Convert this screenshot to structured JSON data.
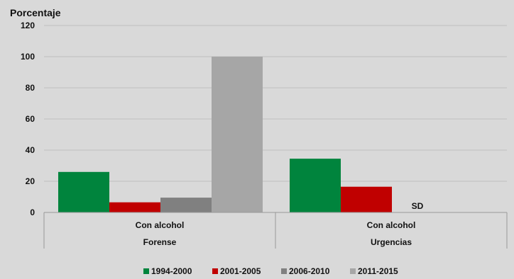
{
  "chart_data": {
    "type": "bar",
    "ylabel": "Porcentaje",
    "ylim": [
      0,
      120
    ],
    "yticks": [
      "0",
      "20",
      "40",
      "60",
      "80",
      "100",
      "120"
    ],
    "grid": true,
    "legend_position": "bottom",
    "groups": [
      {
        "top_label": "Con alcohol",
        "bottom_label": "Forense"
      },
      {
        "top_label": "Con alcohol",
        "bottom_label": "Urgencias"
      }
    ],
    "series": [
      {
        "name": "1994-2000",
        "color": "#00843d",
        "values": [
          26,
          34.5
        ]
      },
      {
        "name": "2001-2005",
        "color": "#c00000",
        "values": [
          6.5,
          16.5
        ]
      },
      {
        "name": "2006-2010",
        "color": "#808080",
        "values": [
          9.5,
          null
        ]
      },
      {
        "name": "2011-2015",
        "color": "#a6a6a6",
        "values": [
          100,
          null
        ]
      }
    ],
    "annotations": [
      {
        "text": "SD",
        "group_index": 1
      }
    ]
  }
}
